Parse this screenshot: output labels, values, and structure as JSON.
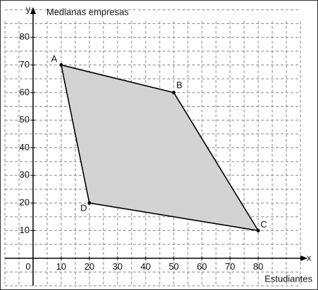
{
  "chart_data": {
    "type": "polygon",
    "y_axis_name": "y",
    "x_axis_name": "x",
    "y_label": "Medianas empresas",
    "x_label": "Estudiantes",
    "points": [
      {
        "label": "A",
        "x": 10,
        "y": 70
      },
      {
        "label": "B",
        "x": 50,
        "y": 60
      },
      {
        "label": "C",
        "x": 80,
        "y": 10
      },
      {
        "label": "D",
        "x": 20,
        "y": 20
      }
    ],
    "fill": "#d3d3d3",
    "color": "#000000",
    "xlim": [
      -10,
      97
    ],
    "ylim": [
      -10,
      91
    ],
    "xticks": [
      0,
      10,
      20,
      30,
      40,
      50,
      60,
      70,
      80
    ],
    "yticks": [
      10,
      20,
      30,
      40,
      50,
      60,
      70,
      80
    ],
    "grid": true,
    "grid_step": 5
  }
}
